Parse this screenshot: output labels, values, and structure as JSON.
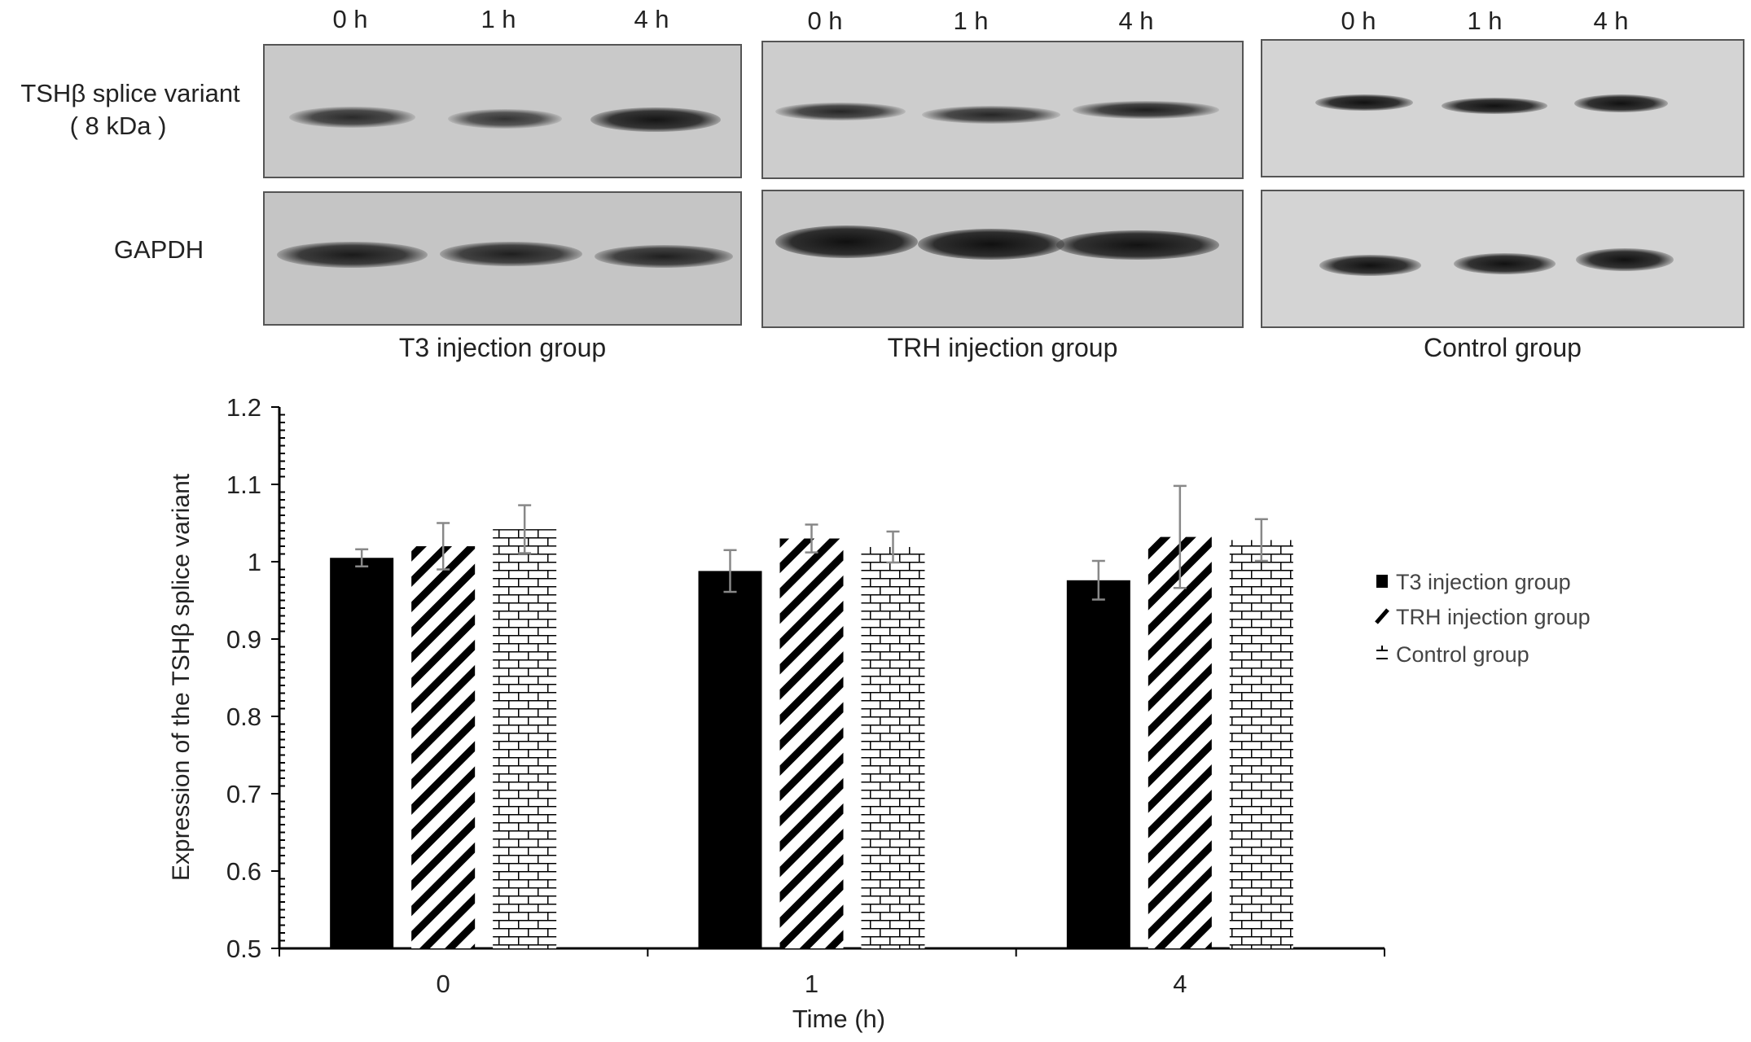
{
  "blot": {
    "lane_labels": [
      "0 h",
      "1 h",
      "4 h"
    ],
    "row_labels": {
      "tsh_line1": "TSHβ splice variant",
      "tsh_line2": "( 8 kDa )",
      "gapdh": "GAPDH"
    },
    "groups": [
      "T3 injection group",
      "TRH injection group",
      "Control group"
    ]
  },
  "chart_data": {
    "type": "bar",
    "categories": [
      "0",
      "1",
      "4"
    ],
    "xlabel": "Time (h)",
    "ylabel": "Expression of the TSHβ splice variant",
    "ylim": [
      0.5,
      1.2
    ],
    "yticks": [
      "0.5",
      "0.6",
      "0.7",
      "0.8",
      "0.9",
      "1",
      "1.1",
      "1.2"
    ],
    "grid": false,
    "legend_position": "right",
    "series": [
      {
        "name": "T3 injection group",
        "values": [
          1.005,
          0.988,
          0.976
        ],
        "errors": [
          0.011,
          0.027,
          0.025
        ],
        "fill": "solid-black"
      },
      {
        "name": "TRH injection group",
        "values": [
          1.02,
          1.03,
          1.032
        ],
        "errors": [
          0.03,
          0.018,
          0.066
        ],
        "fill": "diagonal-stripes"
      },
      {
        "name": "Control group",
        "values": [
          1.042,
          1.019,
          1.028
        ],
        "errors": [
          0.031,
          0.02,
          0.027
        ],
        "fill": "brick"
      }
    ]
  }
}
